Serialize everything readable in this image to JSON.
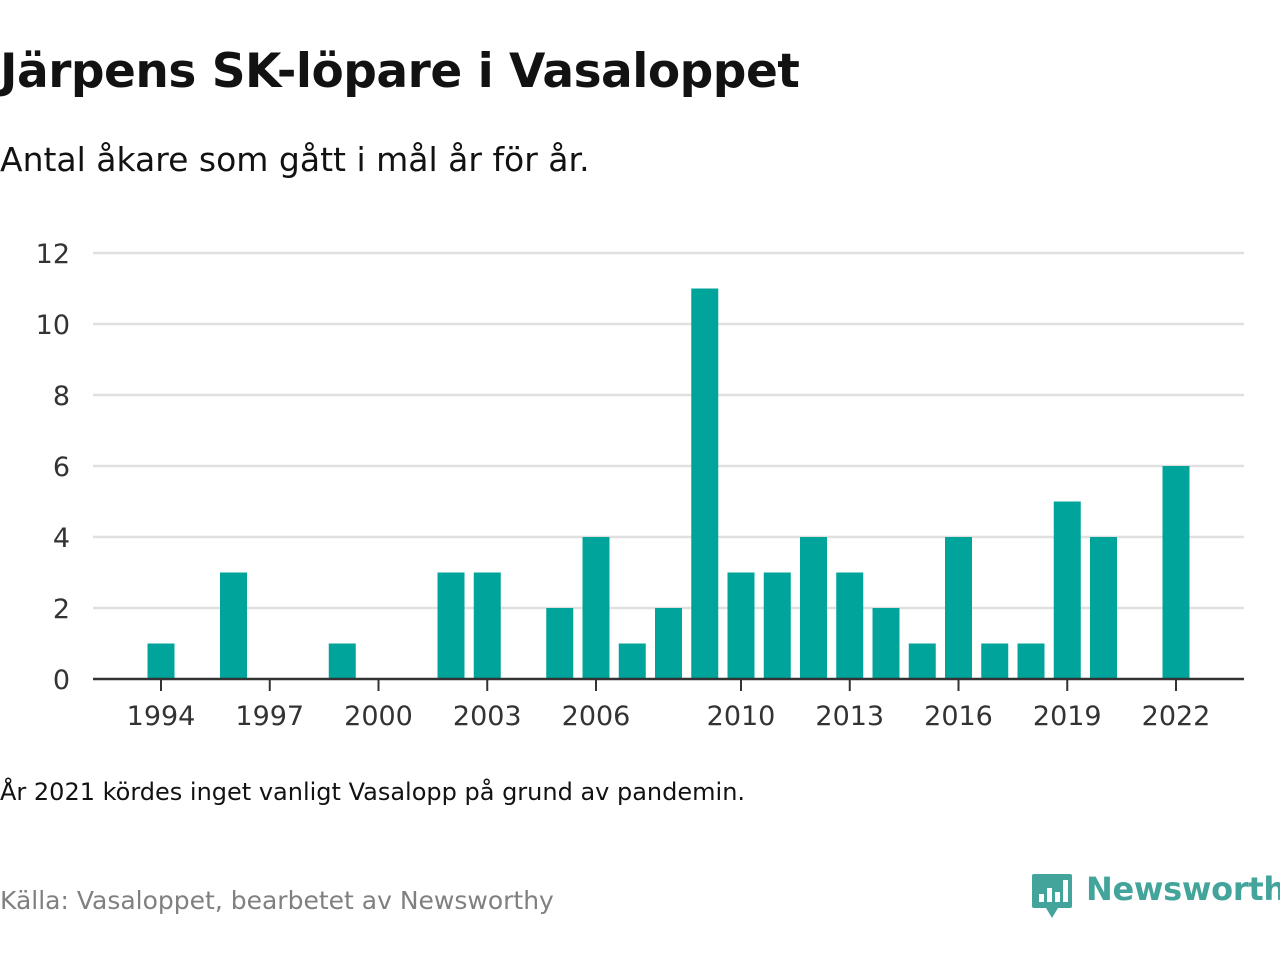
{
  "title": "Järpens SK-löpare i Vasaloppet",
  "subtitle": "Antal åkare som gått i mål år för år.",
  "note": "År 2021 kördes inget vanligt Vasalopp på grund av pandemin.",
  "source": "Källa: Vasaloppet, bearbetet av Newsworthy",
  "brand": {
    "name": "Newsworthy",
    "icon": "newsworthy-logo-icon",
    "color": "#43a49b"
  },
  "colors": {
    "bar": "#00a49a",
    "grid": "#e0e0e0",
    "axis": "#333333"
  },
  "chart_data": {
    "type": "bar",
    "categories": [
      "1994",
      "1995",
      "1996",
      "1997",
      "1998",
      "1999",
      "2000",
      "2001",
      "2002",
      "2003",
      "2004",
      "2005",
      "2006",
      "2007",
      "2008",
      "2009",
      "2010",
      "2011",
      "2012",
      "2013",
      "2014",
      "2015",
      "2016",
      "2017",
      "2018",
      "2019",
      "2020",
      "2022"
    ],
    "values": [
      1,
      0,
      3,
      0,
      0,
      1,
      0,
      0,
      3,
      3,
      0,
      2,
      4,
      1,
      2,
      11,
      3,
      3,
      4,
      3,
      2,
      1,
      4,
      1,
      1,
      5,
      4,
      6
    ],
    "x_ticks": [
      "1994",
      "1997",
      "2000",
      "2003",
      "2006",
      "2010",
      "2013",
      "2016",
      "2019",
      "2022"
    ],
    "y_ticks": [
      0,
      2,
      4,
      6,
      8,
      10,
      12
    ],
    "ylim": [
      0,
      12
    ],
    "xlabel": "",
    "ylabel": "",
    "grid": true,
    "legend": "none"
  }
}
